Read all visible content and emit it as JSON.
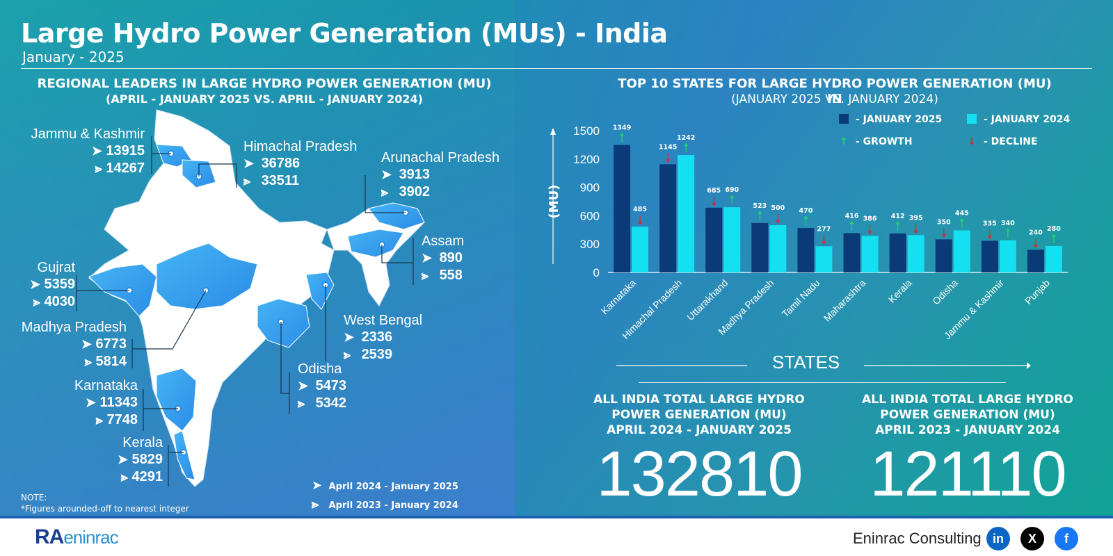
{
  "header": {
    "title": "Large Hydro Power Generation (MUs) - India",
    "subtitle": "January - 2025"
  },
  "map_section": {
    "title": "REGIONAL LEADERS IN LARGE HYDRO POWER GENERATION (MU)",
    "subtitle": "(APRIL - JANUARY 2025 VS. APRIL - JANUARY 2024)",
    "states": [
      {
        "name": "Jammu & Kashmir",
        "current": "13915",
        "previous": "14267"
      },
      {
        "name": "Himachal Pradesh",
        "current": "36786",
        "previous": "33511"
      },
      {
        "name": "Arunachal Pradesh",
        "current": "3913",
        "previous": "3902"
      },
      {
        "name": "Assam",
        "current": "890",
        "previous": "558"
      },
      {
        "name": "Gujrat",
        "current": "5359",
        "previous": "4030"
      },
      {
        "name": "Madhya Pradesh",
        "current": "6773",
        "previous": "5814"
      },
      {
        "name": "West Bengal",
        "current": "2336",
        "previous": "2539"
      },
      {
        "name": "Odisha",
        "current": "5473",
        "previous": "5342"
      },
      {
        "name": "Karnataka",
        "current": "11343",
        "previous": "7748"
      },
      {
        "name": "Kerala",
        "current": "5829",
        "previous": "4291"
      }
    ],
    "legend": {
      "current": "April 2024 - January 2025",
      "previous": "April 2023 - January 2024"
    },
    "note_title": "NOTE:",
    "note_text": "*Figures arounded-off to nearest integer"
  },
  "chart_section": {
    "title": "TOP 10 STATES FOR LARGE HYDRO POWER GENERATION (MU) IN",
    "subtitle": "(JANUARY 2025 VS. JANUARY 2024)",
    "legend": {
      "series1": "-  JANUARY 2025",
      "series2": "-  JANUARY 2024",
      "growth": "-  GROWTH",
      "decline": "-  DECLINE"
    },
    "xlabel": "STATES"
  },
  "chart_data": {
    "type": "bar",
    "title": "TOP 10 STATES FOR LARGE HYDRO POWER GENERATION (MU) IN",
    "xlabel": "STATES",
    "ylabel": "(MU)",
    "ylim": [
      0,
      1500
    ],
    "yticks": [
      0,
      300,
      600,
      900,
      1200,
      1500
    ],
    "categories": [
      "Karnataka",
      "Himachal Pradesh",
      "Uttarakhand",
      "Madhya Pradesh",
      "Tamil Nadu",
      "Maharashtra",
      "Kerala",
      "Odisha",
      "Jammu & Kashmir",
      "Punjab"
    ],
    "series": [
      {
        "name": "JANUARY 2025",
        "color": "#0b3a78",
        "values": [
          1349,
          1145,
          685,
          523,
          470,
          416,
          412,
          350,
          335,
          240
        ],
        "trend": [
          "up",
          "down",
          "down",
          "up",
          "up",
          "up",
          "up",
          "down",
          "down",
          "down"
        ]
      },
      {
        "name": "JANUARY 2024",
        "color": "#14e0f2",
        "values": [
          485,
          1242,
          690,
          500,
          277,
          386,
          395,
          445,
          340,
          280
        ],
        "trend": [
          "down",
          "up",
          "up",
          "down",
          "down",
          "down",
          "down",
          "up",
          "up",
          "up"
        ]
      }
    ],
    "grid": false,
    "legend_position": "top-right"
  },
  "totals": {
    "current": {
      "heading": [
        "ALL INDIA TOTAL LARGE HYDRO",
        "POWER GENERATION (MU)",
        "APRIL 2024 - JANUARY 2025"
      ],
      "value": "132810"
    },
    "previous": {
      "heading": [
        "ALL INDIA TOTAL LARGE HYDRO",
        "POWER GENERATION (MU)",
        "APRIL 2023 - JANUARY 2024"
      ],
      "value": "121110"
    }
  },
  "footer": {
    "logo_text_1": "RA",
    "logo_text_2": "eninrac",
    "brand": "Eninrac Consulting",
    "social": [
      {
        "icon": "linkedin-icon",
        "glyph": "in",
        "color": "#0a66c2"
      },
      {
        "icon": "x-icon",
        "glyph": "X",
        "color": "#000000"
      },
      {
        "icon": "facebook-icon",
        "glyph": "f",
        "color": "#1877f2"
      }
    ]
  },
  "colors": {
    "growth": "#22d36b",
    "decline": "#e0262f",
    "map_white": "#ffffff",
    "map_highlight": "#3aa0f0"
  }
}
